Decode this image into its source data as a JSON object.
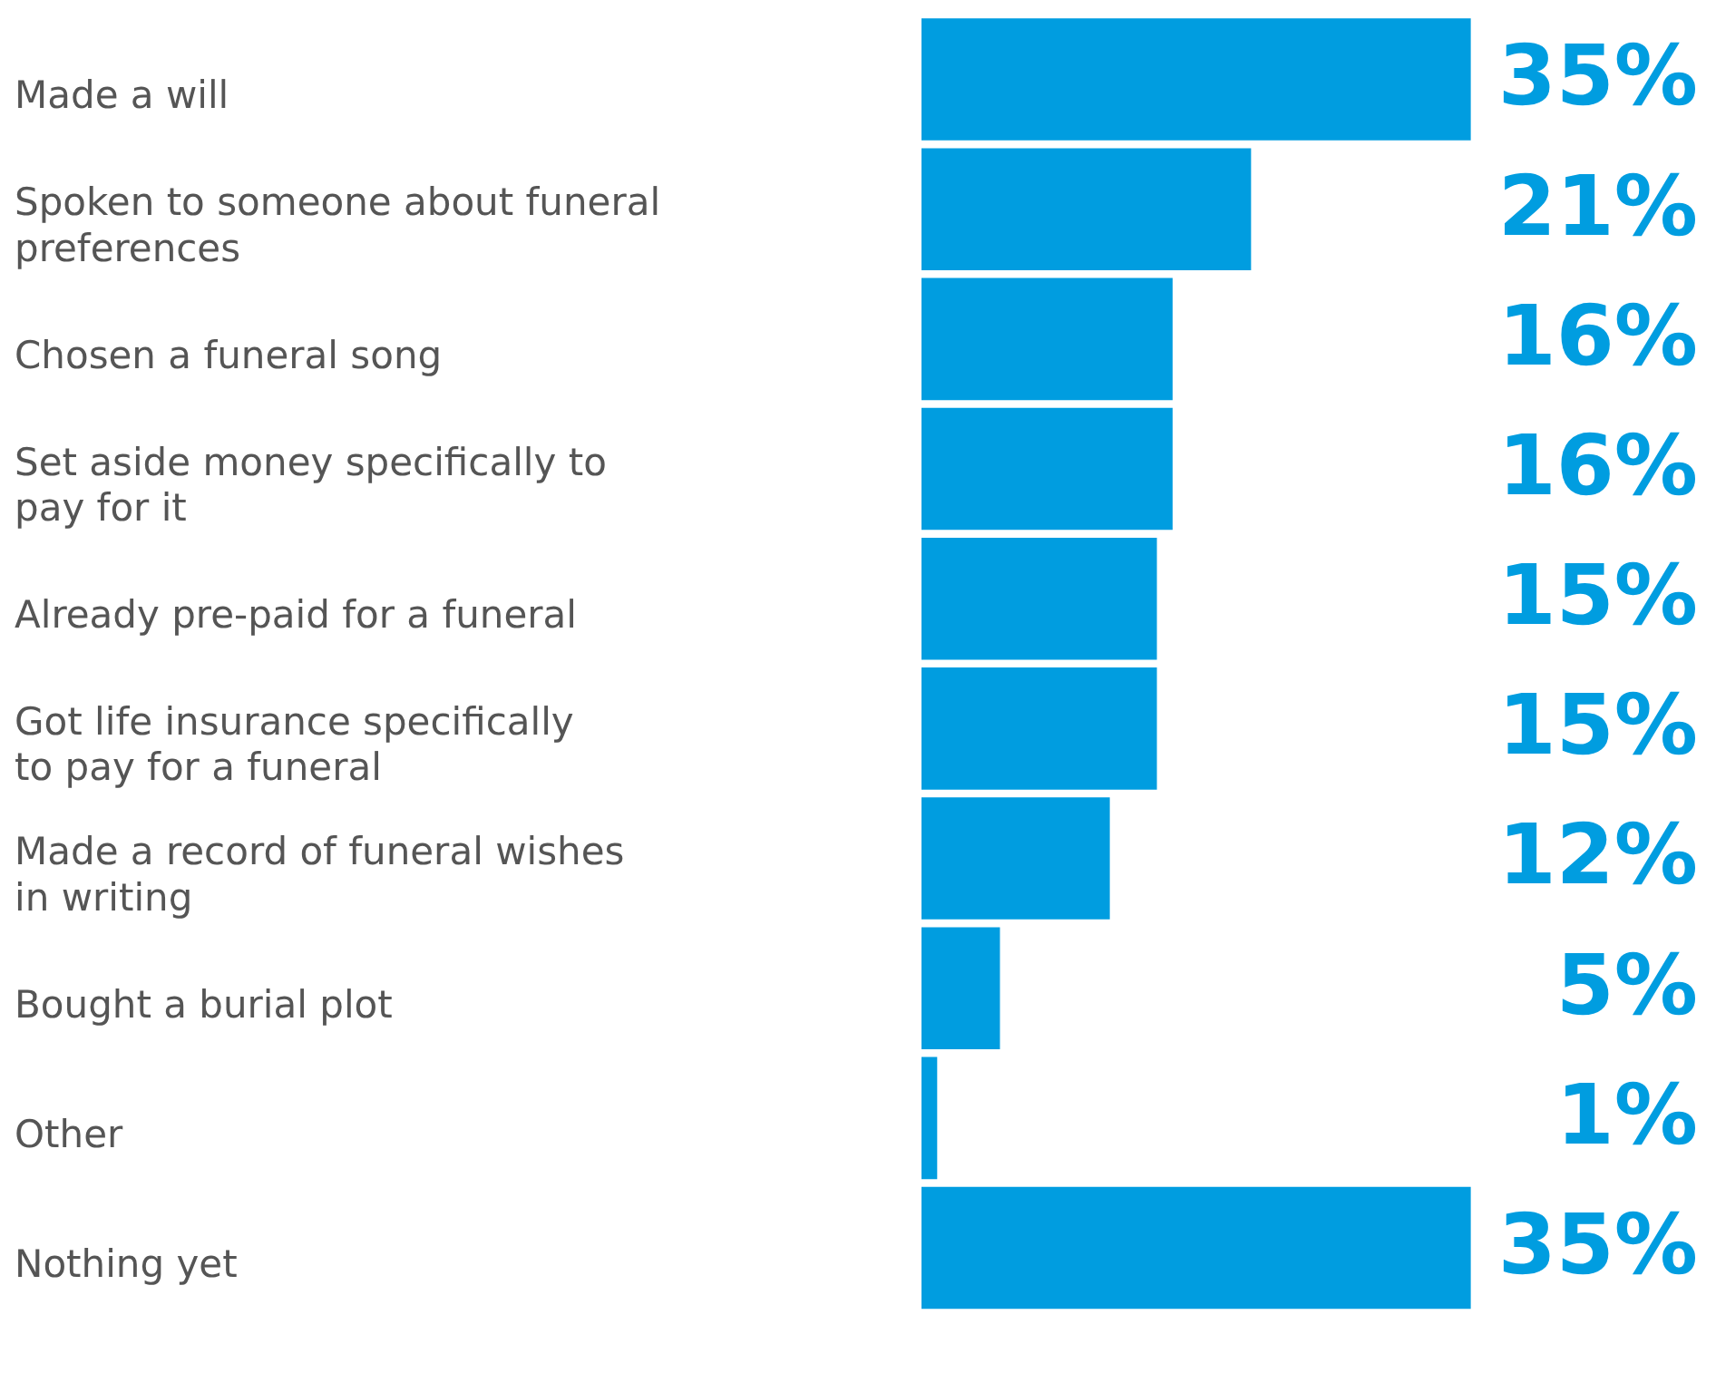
{
  "chart_data": {
    "type": "bar",
    "orientation": "horizontal",
    "tick_labels": "y",
    "categories": [
      "Made a will",
      "Spoken to someone about funeral preferences",
      "Chosen a funeral song",
      "Set aside money specifically to pay for it",
      "Already pre-paid for a funeral",
      "Got life insurance specifically to pay for a funeral",
      "Made a record of funeral wishes in writing",
      "Bought a burial plot",
      "Other",
      "Nothing yet"
    ],
    "values": [
      35,
      21,
      16,
      16,
      15,
      15,
      12,
      5,
      1,
      35
    ],
    "value_labels": [
      "35%",
      "21%",
      "16%",
      "16%",
      "15%",
      "15%",
      "12%",
      "5%",
      "1%",
      "35%"
    ],
    "color": "#009de0",
    "grid": false,
    "legend": false
  }
}
